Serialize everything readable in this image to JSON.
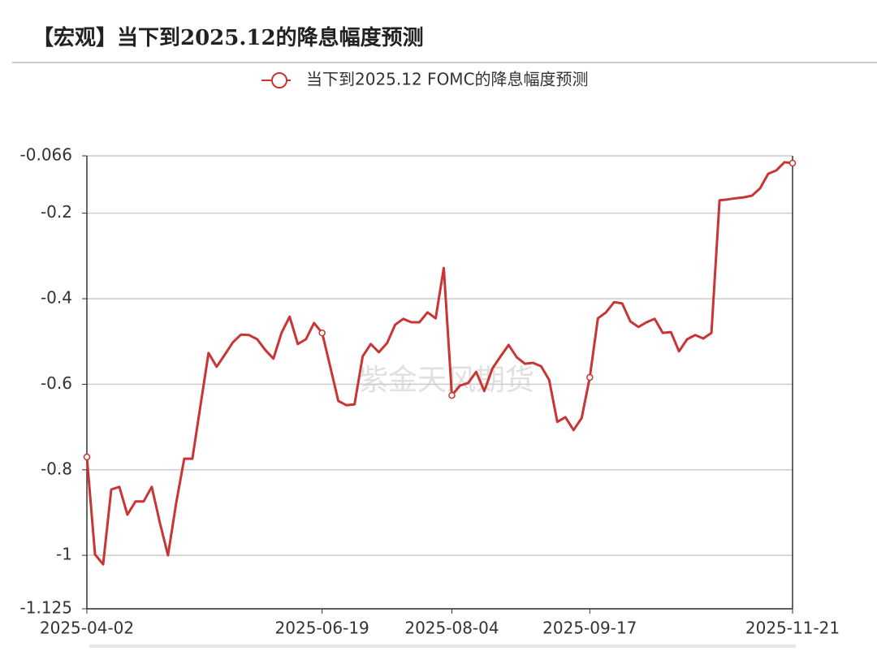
{
  "chart_data": {
    "type": "line",
    "title": "【宏观】当下到2025.12的降息幅度预测",
    "watermark": "紫金天风期货",
    "categories": [
      "2025-04-02",
      null,
      null,
      null,
      null,
      null,
      null,
      null,
      null,
      null,
      null,
      null,
      null,
      null,
      null,
      null,
      null,
      null,
      null,
      null,
      null,
      null,
      null,
      null,
      null,
      null,
      null,
      null,
      null,
      "2025-06-19",
      null,
      null,
      null,
      null,
      null,
      null,
      null,
      null,
      null,
      null,
      null,
      null,
      null,
      null,
      null,
      "2025-08-04",
      null,
      null,
      null,
      null,
      null,
      null,
      null,
      null,
      null,
      null,
      null,
      null,
      null,
      null,
      null,
      null,
      "2025-09-17",
      null,
      null,
      null,
      null,
      null,
      null,
      null,
      null,
      null,
      null,
      null,
      null,
      null,
      null,
      null,
      null,
      null,
      null,
      null,
      null,
      null,
      null,
      null,
      null,
      "2025-11-21"
    ],
    "series": [
      {
        "name": "当下到2025.12 FOMC的降息幅度预测",
        "color": "#c93434",
        "values": [
          -0.77,
          -0.998,
          -1.021,
          -0.846,
          -0.84,
          -0.905,
          -0.874,
          -0.874,
          -0.84,
          -0.924,
          -1.0,
          -0.878,
          -0.774,
          -0.774,
          -0.651,
          -0.527,
          -0.559,
          -0.531,
          -0.502,
          -0.484,
          -0.485,
          -0.495,
          -0.52,
          -0.54,
          -0.48,
          -0.442,
          -0.506,
          -0.495,
          -0.457,
          -0.48,
          -0.559,
          -0.639,
          -0.649,
          -0.647,
          -0.535,
          -0.506,
          -0.525,
          -0.504,
          -0.461,
          -0.447,
          -0.455,
          -0.455,
          -0.432,
          -0.446,
          -0.328,
          -0.626,
          -0.603,
          -0.597,
          -0.571,
          -0.616,
          -0.563,
          -0.535,
          -0.508,
          -0.537,
          -0.552,
          -0.55,
          -0.558,
          -0.59,
          -0.688,
          -0.677,
          -0.707,
          -0.679,
          -0.584,
          -0.446,
          -0.432,
          -0.408,
          -0.411,
          -0.453,
          -0.466,
          -0.455,
          -0.447,
          -0.48,
          -0.478,
          -0.523,
          -0.495,
          -0.485,
          -0.493,
          -0.48,
          -0.17,
          -0.168,
          -0.165,
          -0.163,
          -0.159,
          -0.142,
          -0.108,
          -0.1,
          -0.081,
          -0.083
        ]
      }
    ],
    "ylim": [
      -1.125,
      -0.066
    ],
    "yticks": [
      -1.125,
      -1,
      -0.8,
      -0.6,
      -0.4,
      -0.2,
      -0.066
    ],
    "grid": true
  }
}
